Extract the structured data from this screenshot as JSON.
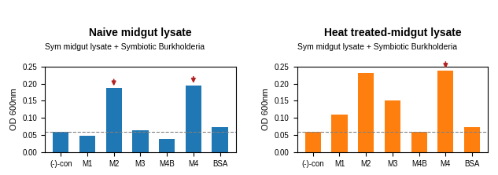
{
  "chart_data": [
    {
      "type": "bar",
      "title": "Naive midgut lysate",
      "subtitle": "Sym midgut lysate + Symbiotic Burkholderia",
      "categories": [
        "(-)-con",
        "M1",
        "M2",
        "M3",
        "M4B",
        "M4",
        "BSA"
      ],
      "values": [
        0.06,
        0.047,
        0.187,
        0.065,
        0.04,
        0.195,
        0.073
      ],
      "ylabel": "OD 600nm",
      "ylim": [
        0,
        0.25
      ],
      "yticks": [
        {
          "value": 0,
          "label": "0.00"
        },
        {
          "value": 0.05,
          "label": "0.05"
        },
        {
          "value": 0.1,
          "label": "0.10"
        },
        {
          "value": 0.15,
          "label": "0.15"
        },
        {
          "value": 0.2,
          "label": "0.20"
        },
        {
          "value": 0.25,
          "label": "0.25"
        }
      ],
      "reference_lines": [
        {
          "value": 0.06,
          "line_style": "dashed"
        }
      ],
      "arrows": [
        {
          "category": "M2",
          "color": "#B22222"
        },
        {
          "category": "M4",
          "color": "#B22222"
        }
      ]
    },
    {
      "type": "bar",
      "title": "Heat treated-midgut lysate",
      "subtitle": "Sym midgut lysate + Symbiotic Burkholderia",
      "categories": [
        "(-)-con",
        "M1",
        "M2",
        "M3",
        "M4B",
        "M4",
        "BSA"
      ],
      "values": [
        0.06,
        0.11,
        0.23,
        0.15,
        0.06,
        0.238,
        0.074
      ],
      "ylabel": "OD 600nm",
      "ylim": [
        0,
        0.25
      ],
      "yticks": [
        {
          "value": 0,
          "label": "0.00"
        },
        {
          "value": 0.05,
          "label": "0.05"
        },
        {
          "value": 0.1,
          "label": "0.10"
        },
        {
          "value": 0.15,
          "label": "0.15"
        },
        {
          "value": 0.2,
          "label": "0.20"
        },
        {
          "value": 0.25,
          "label": "0.25"
        }
      ],
      "reference_lines": [
        {
          "value": 0.06,
          "line_style": "dashed"
        }
      ],
      "arrows": [
        {
          "category": "M4",
          "color": "#B22222"
        }
      ]
    }
  ]
}
